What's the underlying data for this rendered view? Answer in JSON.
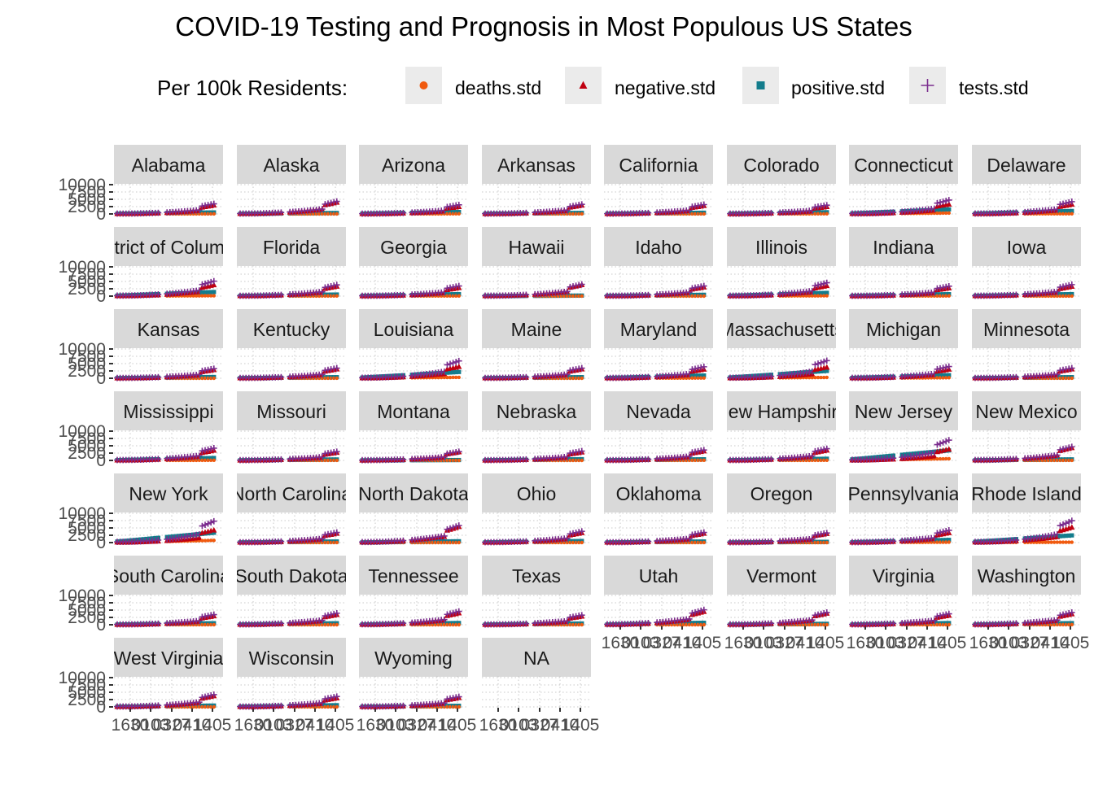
{
  "chart_data": {
    "type": "scatter",
    "title": "COVID-19 Testing and Prognosis in Most Populous US States",
    "legend": {
      "title": "Per 100k Residents:",
      "position": "top",
      "entries": [
        {
          "name": "deaths.std",
          "color": "#F05A0F",
          "shape": "circle"
        },
        {
          "name": "negative.std",
          "color": "#C00010",
          "shape": "triangle"
        },
        {
          "name": "positive.std",
          "color": "#137C8C",
          "shape": "square"
        },
        {
          "name": "tests.std",
          "color": "#7B2D8E",
          "shape": "plus"
        }
      ]
    },
    "facet_labels": [
      "Alabama",
      "Alaska",
      "Arizona",
      "Arkansas",
      "California",
      "Colorado",
      "Connecticut",
      "Delaware",
      "District of Columbia",
      "Florida",
      "Georgia",
      "Hawaii",
      "Idaho",
      "Illinois",
      "Indiana",
      "Iowa",
      "Kansas",
      "Kentucky",
      "Louisiana",
      "Maine",
      "Maryland",
      "Massachusetts",
      "Michigan",
      "Minnesota",
      "Mississippi",
      "Missouri",
      "Montana",
      "Nebraska",
      "Nevada",
      "New Hampshire",
      "New Jersey",
      "New Mexico",
      "New York",
      "North Carolina",
      "North Dakota",
      "Ohio",
      "Oklahoma",
      "Oregon",
      "Pennsylvania",
      "Rhode Island",
      "South Carolina",
      "South Dakota",
      "Tennessee",
      "Texas",
      "Utah",
      "Vermont",
      "Virginia",
      "Washington",
      "West Virginia",
      "Wisconsin",
      "Wyoming",
      "NA"
    ],
    "y_ticks": [
      "0",
      "2500",
      "5000",
      "7500",
      "10000"
    ],
    "ylim": [
      0,
      10000
    ],
    "x_ticks": [
      "1630",
      "0103",
      "0327",
      "0410",
      "1405"
    ],
    "xlim": [
      0,
      5
    ],
    "grid": "dotted",
    "peaks": {
      "tests": [
        3800,
        4700,
        3400,
        3600,
        3500,
        3300,
        5200,
        4600,
        5600,
        4200,
        3800,
        4400,
        3800,
        5000,
        3700,
        4300,
        3600,
        3800,
        6500,
        3800,
        4300,
        6600,
        4400,
        3800,
        4600,
        3300,
        3300,
        3500,
        3900,
        4400,
        7600,
        5100,
        8000,
        3800,
        6400,
        4200,
        3800,
        3600,
        4600,
        8200,
        3800,
        4300,
        5000,
        3600,
        5600,
        4600,
        4100,
        4600,
        4600,
        3900,
        3800,
        0
      ],
      "negative_frac": [
        0.86,
        0.93,
        0.8,
        0.9,
        0.88,
        0.82,
        0.7,
        0.78,
        0.75,
        0.87,
        0.82,
        0.96,
        0.88,
        0.78,
        0.82,
        0.84,
        0.88,
        0.9,
        0.67,
        0.9,
        0.78,
        0.62,
        0.76,
        0.9,
        0.82,
        0.9,
        0.96,
        0.88,
        0.9,
        0.87,
        0.55,
        0.93,
        0.58,
        0.9,
        0.93,
        0.87,
        0.9,
        0.93,
        0.8,
        0.7,
        0.86,
        0.88,
        0.88,
        0.88,
        0.88,
        0.93,
        0.86,
        0.88,
        0.9,
        0.85,
        0.9,
        0
      ],
      "deaths": [
        30,
        0,
        40,
        10,
        30,
        40,
        300,
        60,
        120,
        40,
        60,
        0,
        0,
        110,
        70,
        20,
        0,
        30,
        300,
        0,
        80,
        280,
        180,
        20,
        40,
        20,
        0,
        0,
        40,
        40,
        580,
        30,
        760,
        10,
        0,
        30,
        20,
        0,
        140,
        130,
        20,
        0,
        0,
        0,
        0,
        30,
        20,
        40,
        0,
        10,
        0,
        0
      ]
    }
  }
}
